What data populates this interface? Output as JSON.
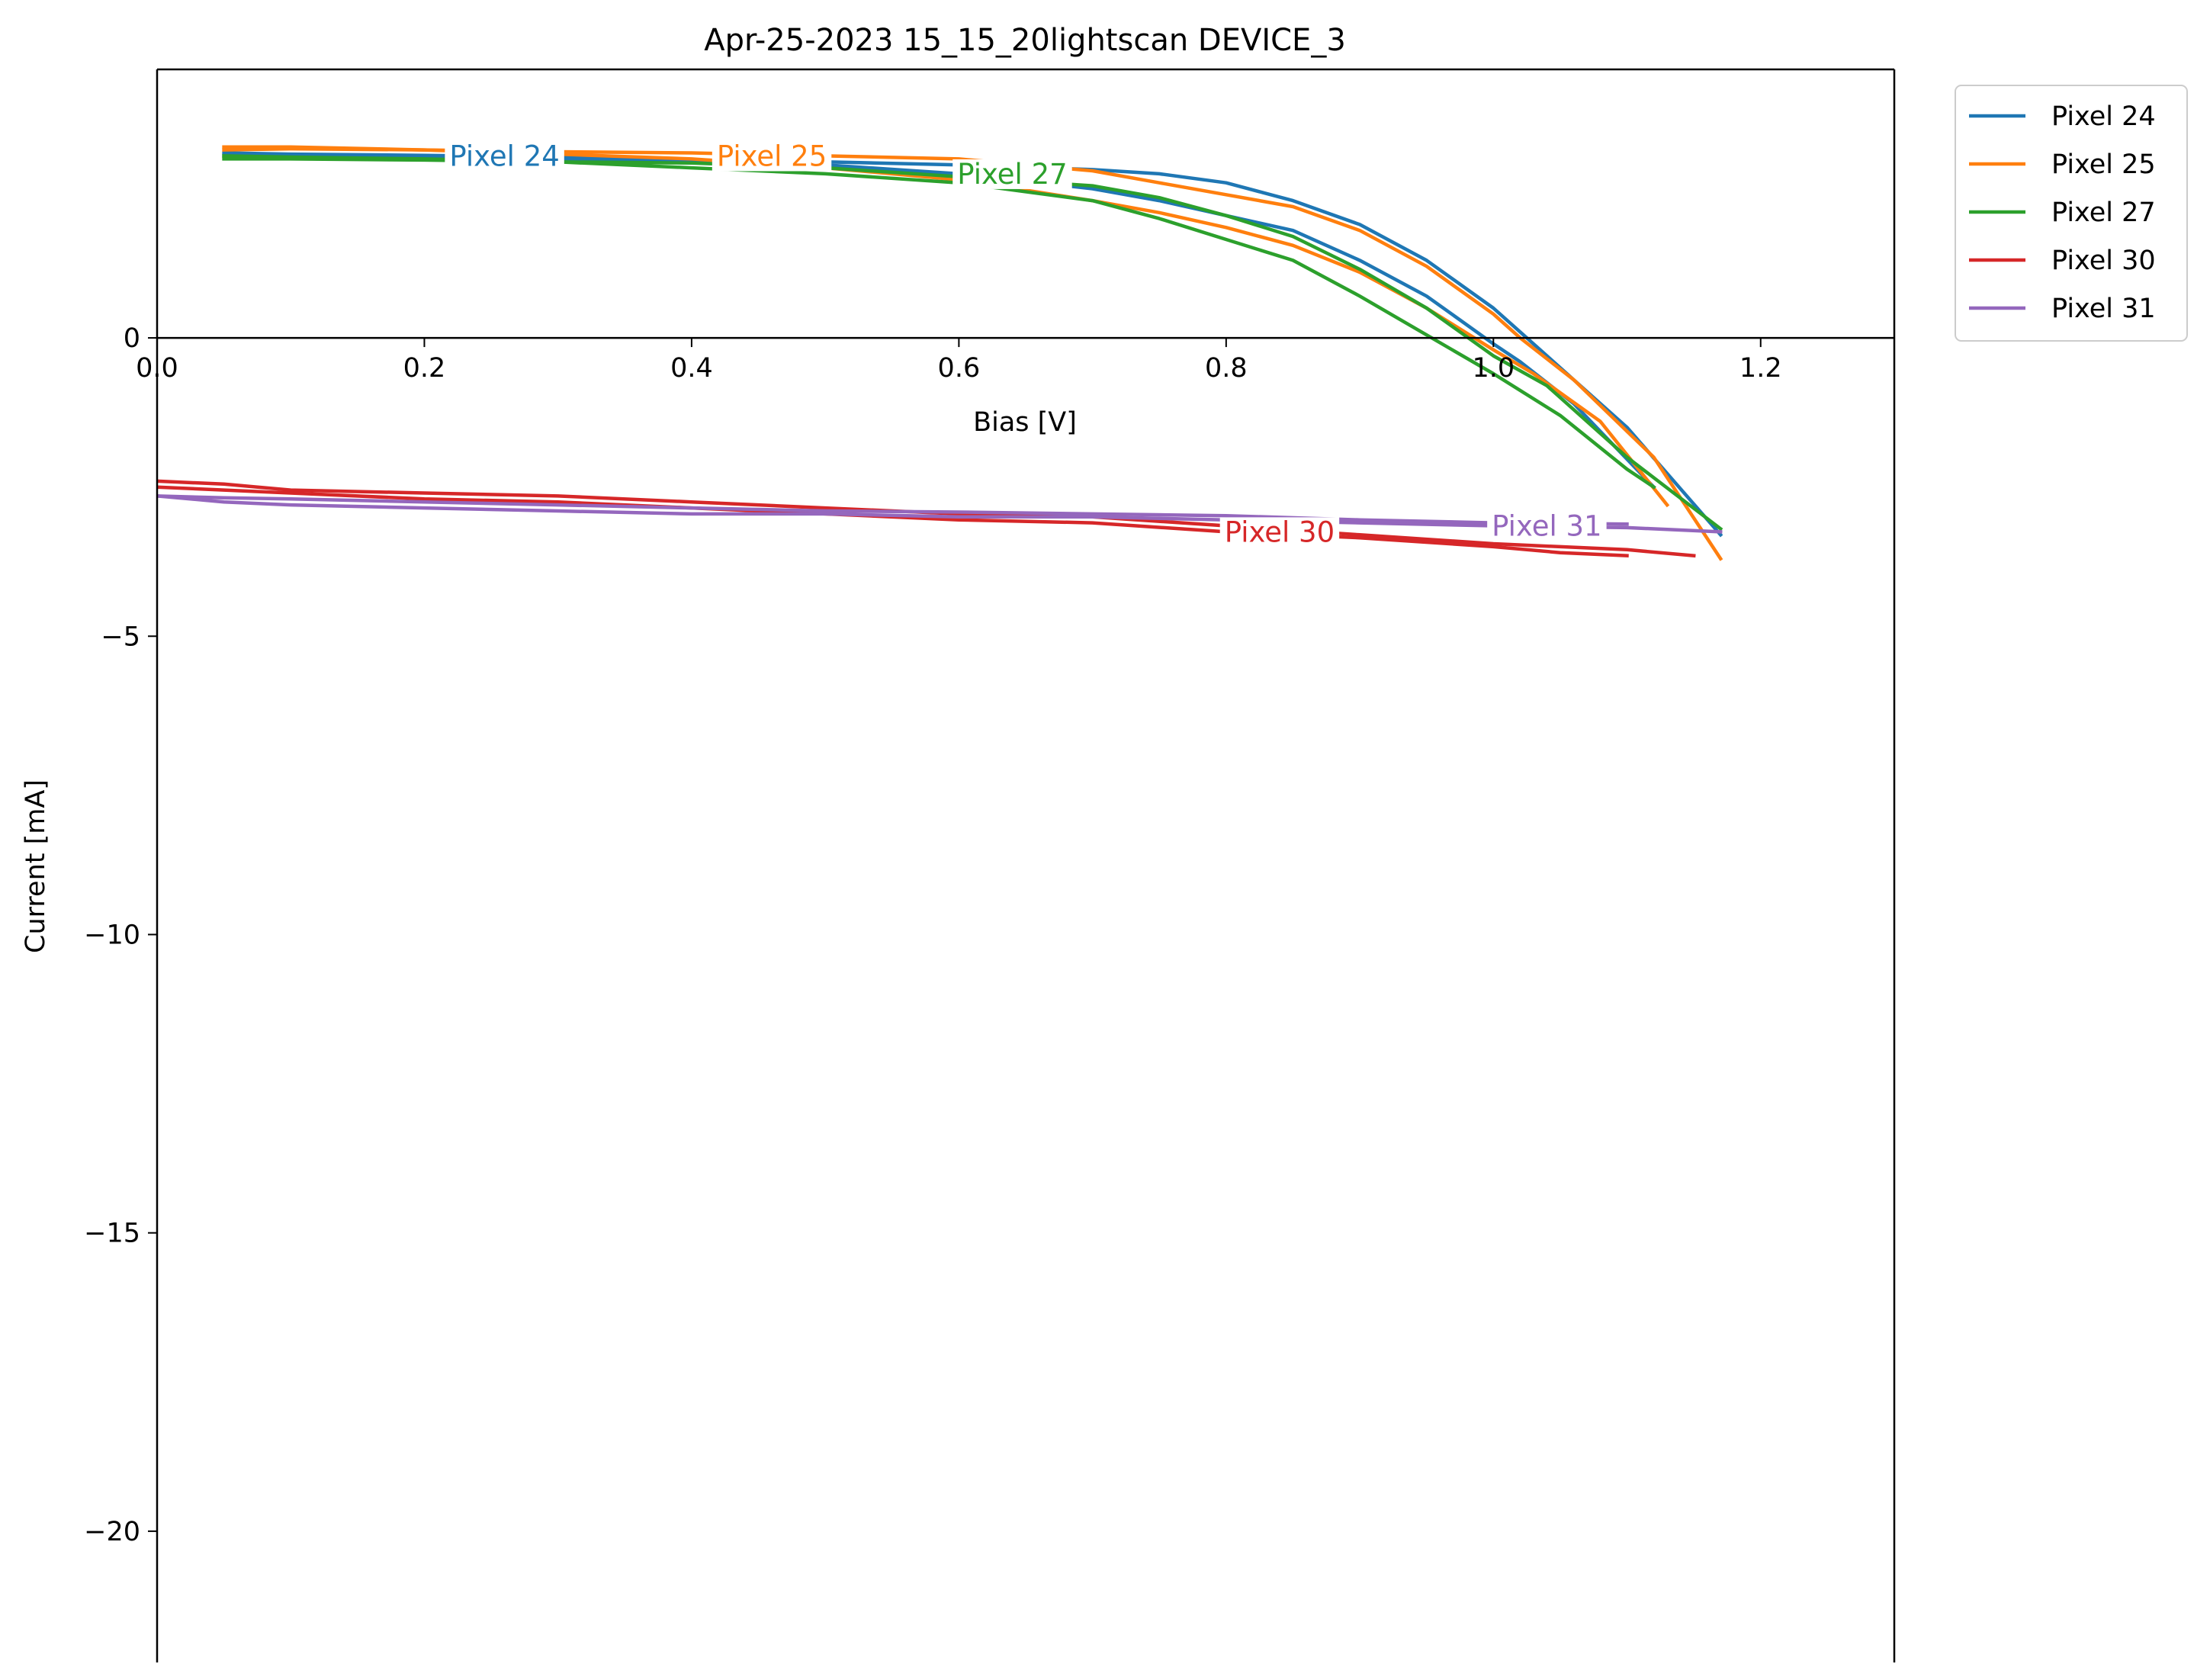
{
  "chart_data": {
    "type": "line",
    "title": "Apr-25-2023 15_15_20lightscan DEVICE_3",
    "xlabel": "Bias [V]",
    "ylabel": "Current [mA]",
    "xlim": [
      0.0,
      1.3
    ],
    "ylim": [
      -22.2,
      4.5
    ],
    "xticks": [
      0.0,
      0.2,
      0.4,
      0.6,
      0.8,
      1.0,
      1.2
    ],
    "xtick_labels": [
      "0.0",
      "0.2",
      "0.4",
      "0.6",
      "0.8",
      "1.0",
      "1.2"
    ],
    "yticks": [
      0,
      -5,
      -10,
      -15,
      -20
    ],
    "ytick_labels": [
      "0",
      "−5",
      "−10",
      "−15",
      "−20"
    ],
    "grid": false,
    "legend_position": "outside-top-right",
    "series": [
      {
        "name": "Pixel 24",
        "color": "#1f77b4",
        "inline_label": "Pixel 24",
        "label_at": [
          0.26,
          3.05
        ],
        "traces": [
          [
            [
              0.05,
              3.05
            ],
            [
              0.1,
              3.03
            ],
            [
              0.2,
              3.02
            ],
            [
              0.3,
              3.0
            ],
            [
              0.4,
              2.98
            ],
            [
              0.5,
              2.95
            ],
            [
              0.6,
              2.9
            ],
            [
              0.7,
              2.82
            ],
            [
              0.75,
              2.75
            ],
            [
              0.8,
              2.6
            ],
            [
              0.85,
              2.3
            ],
            [
              0.9,
              1.9
            ],
            [
              0.95,
              1.3
            ],
            [
              1.0,
              0.5
            ],
            [
              1.02,
              0.1
            ],
            [
              1.05,
              -0.5
            ],
            [
              1.1,
              -1.5
            ],
            [
              1.17,
              -3.3
            ]
          ],
          [
            [
              0.05,
              3.1
            ],
            [
              0.1,
              3.08
            ],
            [
              0.2,
              3.06
            ],
            [
              0.3,
              3.03
            ],
            [
              0.4,
              2.98
            ],
            [
              0.5,
              2.9
            ],
            [
              0.6,
              2.75
            ],
            [
              0.7,
              2.5
            ],
            [
              0.75,
              2.3
            ],
            [
              0.8,
              2.05
            ],
            [
              0.85,
              1.8
            ],
            [
              0.9,
              1.3
            ],
            [
              0.95,
              0.7
            ],
            [
              1.0,
              -0.1
            ],
            [
              1.02,
              -0.4
            ],
            [
              1.06,
              -1.1
            ],
            [
              1.12,
              -2.5
            ]
          ]
        ]
      },
      {
        "name": "Pixel 25",
        "color": "#ff7f0e",
        "inline_label": "Pixel 25",
        "label_at": [
          0.46,
          3.05
        ],
        "traces": [
          [
            [
              0.05,
              3.15
            ],
            [
              0.1,
              3.17
            ],
            [
              0.2,
              3.15
            ],
            [
              0.3,
              3.12
            ],
            [
              0.4,
              3.1
            ],
            [
              0.5,
              3.05
            ],
            [
              0.6,
              3.0
            ],
            [
              0.7,
              2.8
            ],
            [
              0.75,
              2.6
            ],
            [
              0.8,
              2.4
            ],
            [
              0.85,
              2.2
            ],
            [
              0.9,
              1.8
            ],
            [
              0.95,
              1.2
            ],
            [
              1.0,
              0.4
            ],
            [
              1.02,
              0.0
            ],
            [
              1.06,
              -0.7
            ],
            [
              1.12,
              -2.0
            ],
            [
              1.17,
              -3.7
            ]
          ],
          [
            [
              0.05,
              3.2
            ],
            [
              0.1,
              3.2
            ],
            [
              0.2,
              3.15
            ],
            [
              0.3,
              3.08
            ],
            [
              0.4,
              3.0
            ],
            [
              0.5,
              2.85
            ],
            [
              0.6,
              2.65
            ],
            [
              0.7,
              2.3
            ],
            [
              0.75,
              2.1
            ],
            [
              0.8,
              1.85
            ],
            [
              0.85,
              1.55
            ],
            [
              0.9,
              1.1
            ],
            [
              0.95,
              0.5
            ],
            [
              1.0,
              -0.2
            ],
            [
              1.03,
              -0.6
            ],
            [
              1.08,
              -1.4
            ],
            [
              1.13,
              -2.8
            ]
          ]
        ]
      },
      {
        "name": "Pixel 27",
        "color": "#2ca02c",
        "inline_label": "Pixel 27",
        "label_at": [
          0.64,
          2.75
        ],
        "traces": [
          [
            [
              0.05,
              3.0
            ],
            [
              0.1,
              3.0
            ],
            [
              0.2,
              2.98
            ],
            [
              0.3,
              2.95
            ],
            [
              0.4,
              2.93
            ],
            [
              0.5,
              2.85
            ],
            [
              0.6,
              2.7
            ],
            [
              0.7,
              2.55
            ],
            [
              0.75,
              2.35
            ],
            [
              0.8,
              2.05
            ],
            [
              0.85,
              1.7
            ],
            [
              0.9,
              1.15
            ],
            [
              0.95,
              0.5
            ],
            [
              1.0,
              -0.3
            ],
            [
              1.04,
              -0.8
            ],
            [
              1.1,
              -2.0
            ],
            [
              1.17,
              -3.2
            ]
          ],
          [
            [
              0.05,
              3.05
            ],
            [
              0.1,
              3.03
            ],
            [
              0.2,
              3.0
            ],
            [
              0.3,
              2.95
            ],
            [
              0.4,
              2.85
            ],
            [
              0.5,
              2.75
            ],
            [
              0.6,
              2.6
            ],
            [
              0.7,
              2.3
            ],
            [
              0.75,
              2.0
            ],
            [
              0.8,
              1.65
            ],
            [
              0.85,
              1.3
            ],
            [
              0.9,
              0.7
            ],
            [
              0.95,
              0.05
            ],
            [
              1.0,
              -0.6
            ],
            [
              1.05,
              -1.3
            ],
            [
              1.1,
              -2.2
            ],
            [
              1.12,
              -2.5
            ]
          ]
        ]
      },
      {
        "name": "Pixel 30",
        "color": "#d62728",
        "inline_label": "Pixel 30",
        "label_at": [
          0.84,
          -3.25
        ],
        "traces": [
          [
            [
              0.0,
              -2.4
            ],
            [
              0.05,
              -2.45
            ],
            [
              0.1,
              -2.55
            ],
            [
              0.2,
              -2.6
            ],
            [
              0.3,
              -2.65
            ],
            [
              0.4,
              -2.75
            ],
            [
              0.5,
              -2.85
            ],
            [
              0.6,
              -2.95
            ],
            [
              0.7,
              -3.0
            ],
            [
              0.8,
              -3.15
            ],
            [
              0.9,
              -3.3
            ],
            [
              1.0,
              -3.45
            ],
            [
              1.1,
              -3.55
            ],
            [
              1.15,
              -3.65
            ]
          ],
          [
            [
              0.0,
              -2.5
            ],
            [
              0.05,
              -2.55
            ],
            [
              0.1,
              -2.6
            ],
            [
              0.2,
              -2.7
            ],
            [
              0.3,
              -2.75
            ],
            [
              0.4,
              -2.85
            ],
            [
              0.5,
              -2.95
            ],
            [
              0.6,
              -3.05
            ],
            [
              0.7,
              -3.1
            ],
            [
              0.8,
              -3.25
            ],
            [
              0.9,
              -3.35
            ],
            [
              1.0,
              -3.5
            ],
            [
              1.05,
              -3.6
            ],
            [
              1.1,
              -3.65
            ]
          ]
        ]
      },
      {
        "name": "Pixel 31",
        "color": "#9467bd",
        "inline_label": "Pixel 31",
        "label_at": [
          1.04,
          -3.15
        ],
        "traces": [
          [
            [
              0.0,
              -2.65
            ],
            [
              0.05,
              -2.75
            ],
            [
              0.1,
              -2.8
            ],
            [
              0.2,
              -2.85
            ],
            [
              0.3,
              -2.9
            ],
            [
              0.4,
              -2.95
            ],
            [
              0.5,
              -2.95
            ],
            [
              0.6,
              -3.0
            ],
            [
              0.7,
              -3.0
            ],
            [
              0.8,
              -3.05
            ],
            [
              0.9,
              -3.1
            ],
            [
              1.0,
              -3.15
            ],
            [
              1.1,
              -3.18
            ],
            [
              1.17,
              -3.25
            ]
          ],
          [
            [
              0.0,
              -2.65
            ],
            [
              0.05,
              -2.68
            ],
            [
              0.1,
              -2.7
            ],
            [
              0.2,
              -2.75
            ],
            [
              0.3,
              -2.8
            ],
            [
              0.4,
              -2.85
            ],
            [
              0.5,
              -2.9
            ],
            [
              0.6,
              -2.92
            ],
            [
              0.7,
              -2.95
            ],
            [
              0.8,
              -2.98
            ],
            [
              0.9,
              -3.05
            ],
            [
              1.0,
              -3.1
            ],
            [
              1.1,
              -3.12
            ]
          ]
        ]
      }
    ]
  }
}
